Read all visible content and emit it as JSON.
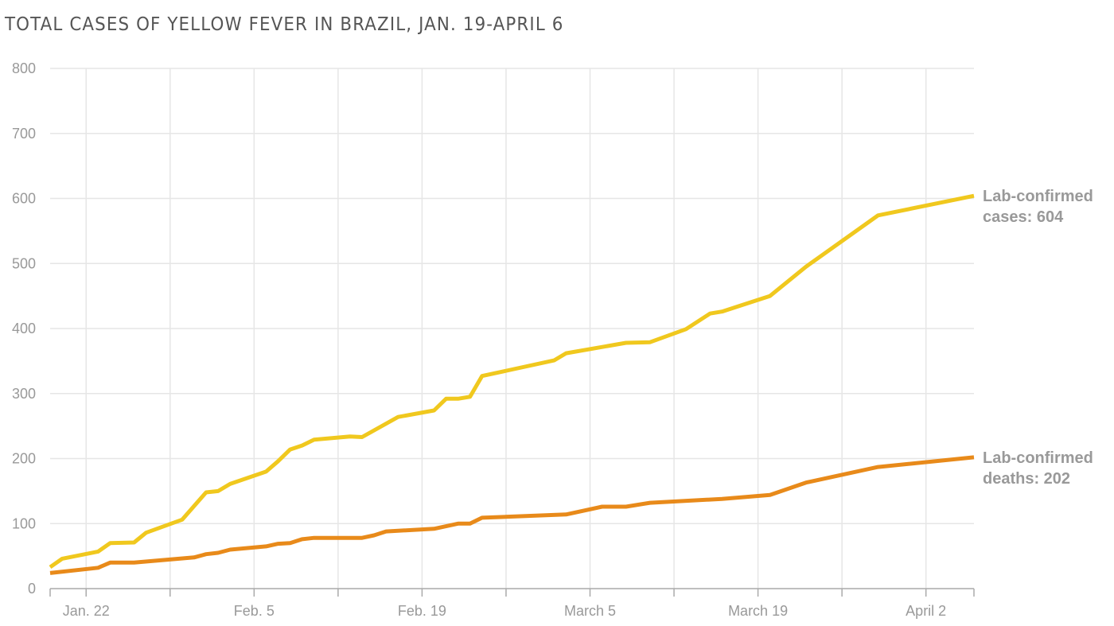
{
  "chart_data": {
    "type": "line",
    "title": "TOTAL CASES OF YELLOW FEVER IN BRAZIL, JAN. 19-APRIL 6",
    "xlabel": "",
    "ylabel": "",
    "ylim": [
      0,
      800
    ],
    "yticks": [
      0,
      100,
      200,
      300,
      400,
      500,
      600,
      700,
      800
    ],
    "xlim": [
      "Jan 19",
      "Apr 6"
    ],
    "xticks": [
      {
        "date": "Jan 22",
        "label": "Jan. 22"
      },
      {
        "date": "Feb 5",
        "label": "Feb. 5"
      },
      {
        "date": "Feb 19",
        "label": "Feb. 19"
      },
      {
        "date": "Mar 5",
        "label": "March 5"
      },
      {
        "date": "Mar 19",
        "label": "March 19"
      },
      {
        "date": "Apr 2",
        "label": "April 2"
      }
    ],
    "grid": true,
    "series": [
      {
        "name": "Lab-confirmed cases",
        "label_lines": [
          "Lab-confirmed",
          "cases: 604"
        ],
        "color": "#f0c81e",
        "x": [
          "Jan 19",
          "Jan 20",
          "Jan 23",
          "Jan 24",
          "Jan 26",
          "Jan 27",
          "Jan 30",
          "Jan 31",
          "Feb 1",
          "Feb 2",
          "Feb 3",
          "Feb 6",
          "Feb 7",
          "Feb 8",
          "Feb 9",
          "Feb 10",
          "Feb 13",
          "Feb 14",
          "Feb 17",
          "Feb 20",
          "Feb 21",
          "Feb 22",
          "Feb 23",
          "Feb 24",
          "Mar 2",
          "Mar 3",
          "Mar 8",
          "Mar 10",
          "Mar 13",
          "Mar 15",
          "Mar 16",
          "Mar 20",
          "Mar 23",
          "Mar 29",
          "Apr 6"
        ],
        "values": [
          33,
          46,
          57,
          70,
          71,
          86,
          106,
          127,
          148,
          150,
          161,
          180,
          196,
          214,
          220,
          229,
          234,
          233,
          264,
          274,
          292,
          292,
          295,
          327,
          351,
          362,
          378,
          379,
          399,
          423,
          426,
          450,
          495,
          574,
          604
        ]
      },
      {
        "name": "Lab-confirmed deaths",
        "label_lines": [
          "Lab-confirmed",
          "deaths: 202"
        ],
        "color": "#e88a1a",
        "x": [
          "Jan 19",
          "Jan 23",
          "Jan 24",
          "Jan 26",
          "Jan 31",
          "Feb 1",
          "Feb 2",
          "Feb 3",
          "Feb 6",
          "Feb 7",
          "Feb 8",
          "Feb 9",
          "Feb 10",
          "Feb 14",
          "Feb 15",
          "Feb 16",
          "Feb 20",
          "Feb 22",
          "Feb 23",
          "Feb 24",
          "Mar 3",
          "Mar 6",
          "Mar 8",
          "Mar 10",
          "Mar 16",
          "Mar 20",
          "Mar 23",
          "Mar 29",
          "Apr 6"
        ],
        "values": [
          24,
          32,
          40,
          40,
          48,
          53,
          55,
          60,
          65,
          69,
          70,
          76,
          78,
          78,
          82,
          88,
          92,
          100,
          100,
          109,
          114,
          126,
          126,
          132,
          138,
          144,
          163,
          187,
          202
        ]
      }
    ]
  }
}
